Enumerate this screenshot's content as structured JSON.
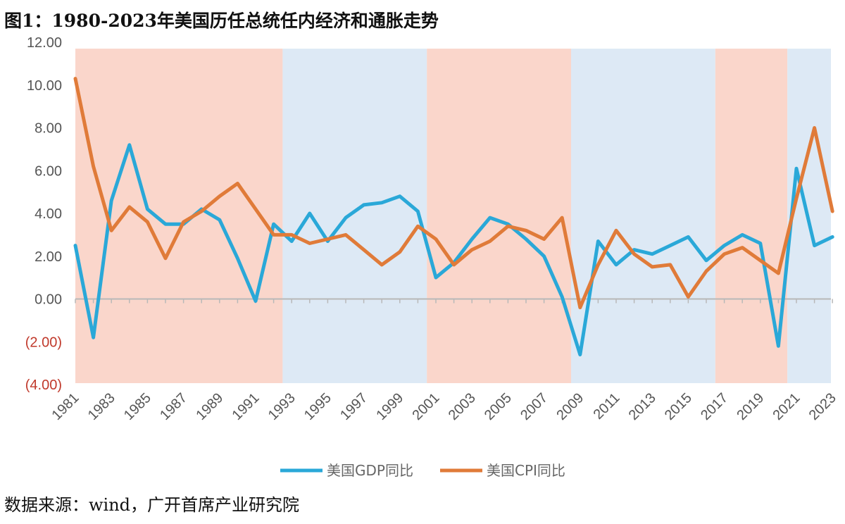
{
  "title": "图1：1980-2023年美国历任总统任内经济和通胀走势",
  "source": "数据来源：wind，广开首席产业研究院",
  "chart_data": {
    "type": "line",
    "title": "图1：1980-2023年美国历任总统任内经济和通胀走势",
    "xlabel": "",
    "ylabel": "",
    "ylim": [
      -4,
      12
    ],
    "yticks": [
      12,
      10,
      8,
      6,
      4,
      2,
      0,
      -2,
      -4
    ],
    "ytick_labels": [
      "12.00",
      "10.00",
      "8.00",
      "6.00",
      "4.00",
      "2.00",
      "0.00",
      "(2.00)",
      "(4.00)"
    ],
    "x": [
      1981,
      1982,
      1983,
      1984,
      1985,
      1986,
      1987,
      1988,
      1989,
      1990,
      1991,
      1992,
      1993,
      1994,
      1995,
      1996,
      1997,
      1998,
      1999,
      2000,
      2001,
      2002,
      2003,
      2004,
      2005,
      2006,
      2007,
      2008,
      2009,
      2010,
      2011,
      2012,
      2013,
      2014,
      2015,
      2016,
      2017,
      2018,
      2019,
      2020,
      2021,
      2022,
      2023
    ],
    "xtick_labels": [
      "1981",
      "1983",
      "1985",
      "1987",
      "1989",
      "1991",
      "1993",
      "1995",
      "1997",
      "1999",
      "2001",
      "2003",
      "2005",
      "2007",
      "2009",
      "2011",
      "2013",
      "2015",
      "2017",
      "2019",
      "2021",
      "2023"
    ],
    "series": [
      {
        "name": "美国GDP同比",
        "color": "#2aa8d8",
        "values": [
          2.5,
          -1.8,
          4.6,
          7.2,
          4.2,
          3.5,
          3.5,
          4.2,
          3.7,
          1.9,
          -0.1,
          3.5,
          2.7,
          4.0,
          2.7,
          3.8,
          4.4,
          4.5,
          4.8,
          4.1,
          1.0,
          1.7,
          2.8,
          3.8,
          3.5,
          2.8,
          2.0,
          0.1,
          -2.6,
          2.7,
          1.6,
          2.3,
          2.1,
          2.5,
          2.9,
          1.8,
          2.5,
          3.0,
          2.6,
          -2.2,
          6.1,
          2.5,
          2.9
        ]
      },
      {
        "name": "美国CPI同比",
        "color": "#e07b39",
        "values": [
          10.3,
          6.2,
          3.2,
          4.3,
          3.6,
          1.9,
          3.6,
          4.1,
          4.8,
          5.4,
          4.2,
          3.0,
          3.0,
          2.6,
          2.8,
          3.0,
          2.3,
          1.6,
          2.2,
          3.4,
          2.8,
          1.6,
          2.3,
          2.7,
          3.4,
          3.2,
          2.8,
          3.8,
          -0.4,
          1.6,
          3.2,
          2.1,
          1.5,
          1.6,
          0.1,
          1.3,
          2.1,
          2.4,
          1.8,
          1.2,
          4.7,
          8.0,
          4.1
        ]
      }
    ],
    "shaded_periods": [
      {
        "start": 1981,
        "end": 1992,
        "color": "#fad6cb"
      },
      {
        "start": 1993,
        "end": 2000,
        "color": "#dde9f5"
      },
      {
        "start": 2001,
        "end": 2008,
        "color": "#fad6cb"
      },
      {
        "start": 2009,
        "end": 2016,
        "color": "#dde9f5"
      },
      {
        "start": 2017,
        "end": 2020,
        "color": "#fad6cb"
      },
      {
        "start": 2021,
        "end": 2023,
        "color": "#dde9f5"
      }
    ],
    "legend_position": "bottom-center"
  }
}
